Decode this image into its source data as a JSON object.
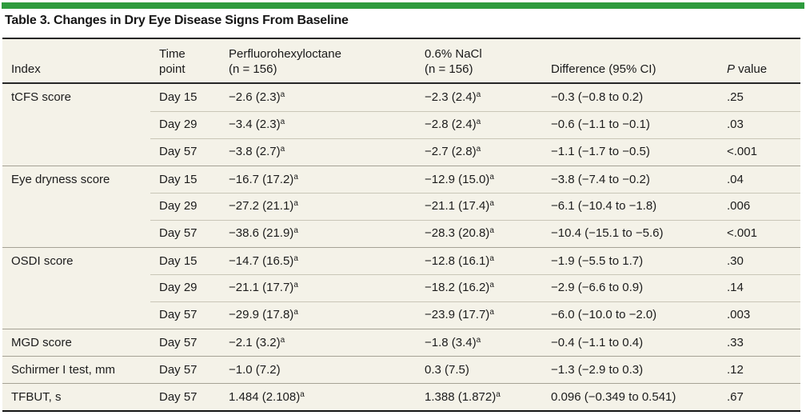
{
  "title": "Table 3. Changes in Dry Eye Disease Signs From Baseline",
  "colors": {
    "accent_green": "#2e9b3d",
    "table_background": "#f4f2e8",
    "rule_dark": "#262626",
    "rule_group": "#a5a295",
    "rule_subrow": "#c9c6b7"
  },
  "columns": [
    {
      "line1": "Index",
      "line2": ""
    },
    {
      "line1": "Time",
      "line2": "point"
    },
    {
      "line1": "Perfluorohexyloctane",
      "line2": "(n = 156)"
    },
    {
      "line1": "0.6% NaCl",
      "line2": "(n = 156)"
    },
    {
      "line1": "Difference (95% CI)",
      "line2": ""
    },
    {
      "italic": "P",
      "rest": " value"
    }
  ],
  "footnote_marker": "a",
  "rows": [
    {
      "index": "tCFS score",
      "time": "Day 15",
      "pfho": "−2.6 (2.3)",
      "pfho_sup": "a",
      "nacl": "−2.3 (2.4)",
      "nacl_sup": "a",
      "diff": "−0.3 (−0.8 to 0.2)",
      "p": ".25",
      "sep": "none"
    },
    {
      "index": "",
      "time": "Day 29",
      "pfho": "−3.4 (2.3)",
      "pfho_sup": "a",
      "nacl": "−2.8 (2.4)",
      "nacl_sup": "a",
      "diff": "−0.6 (−1.1 to −0.1)",
      "p": ".03",
      "sep": "indent"
    },
    {
      "index": "",
      "time": "Day 57",
      "pfho": "−3.8 (2.7)",
      "pfho_sup": "a",
      "nacl": "−2.7 (2.8)",
      "nacl_sup": "a",
      "diff": "−1.1 (−1.7 to −0.5)",
      "p": "<.001",
      "sep": "indent"
    },
    {
      "index": "Eye dryness score",
      "time": "Day 15",
      "pfho": "−16.7 (17.2)",
      "pfho_sup": "a",
      "nacl": "−12.9 (15.0)",
      "nacl_sup": "a",
      "diff": "−3.8 (−7.4 to −0.2)",
      "p": ".04",
      "sep": "full"
    },
    {
      "index": "",
      "time": "Day 29",
      "pfho": "−27.2 (21.1)",
      "pfho_sup": "a",
      "nacl": "−21.1 (17.4)",
      "nacl_sup": "a",
      "diff": "−6.1 (−10.4 to −1.8)",
      "p": ".006",
      "sep": "indent"
    },
    {
      "index": "",
      "time": "Day 57",
      "pfho": "−38.6 (21.9)",
      "pfho_sup": "a",
      "nacl": "−28.3 (20.8)",
      "nacl_sup": "a",
      "diff": "−10.4 (−15.1 to −5.6)",
      "p": "<.001",
      "sep": "indent"
    },
    {
      "index": "OSDI score",
      "time": "Day 15",
      "pfho": "−14.7 (16.5)",
      "pfho_sup": "a",
      "nacl": "−12.8 (16.1)",
      "nacl_sup": "a",
      "diff": "−1.9 (−5.5 to 1.7)",
      "p": ".30",
      "sep": "full"
    },
    {
      "index": "",
      "time": "Day 29",
      "pfho": "−21.1 (17.7)",
      "pfho_sup": "a",
      "nacl": "−18.2 (16.2)",
      "nacl_sup": "a",
      "diff": "−2.9 (−6.6 to 0.9)",
      "p": ".14",
      "sep": "indent"
    },
    {
      "index": "",
      "time": "Day 57",
      "pfho": "−29.9 (17.8)",
      "pfho_sup": "a",
      "nacl": "−23.9 (17.7)",
      "nacl_sup": "a",
      "diff": "−6.0 (−10.0 to −2.0)",
      "p": ".003",
      "sep": "indent"
    },
    {
      "index": "MGD score",
      "time": "Day 57",
      "pfho": "−2.1 (3.2)",
      "pfho_sup": "a",
      "nacl": "−1.8 (3.4)",
      "nacl_sup": "a",
      "diff": "−0.4 (−1.1 to 0.4)",
      "p": ".33",
      "sep": "full"
    },
    {
      "index": "Schirmer I test, mm",
      "time": "Day 57",
      "pfho": "−1.0 (7.2)",
      "pfho_sup": "",
      "nacl": "0.3 (7.5)",
      "nacl_sup": "",
      "diff": "−1.3 (−2.9 to 0.3)",
      "p": ".12",
      "sep": "full"
    },
    {
      "index": "TFBUT, s",
      "time": "Day 57",
      "pfho": "1.484 (2.108)",
      "pfho_sup": "a",
      "nacl": "1.388 (1.872)",
      "nacl_sup": "a",
      "diff": "0.096 (−0.349 to 0.541)",
      "p": ".67",
      "sep": "full"
    }
  ]
}
